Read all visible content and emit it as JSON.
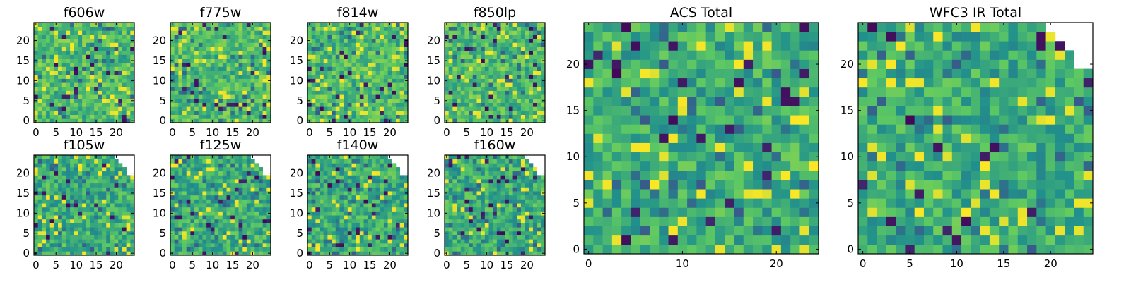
{
  "figure_title": "",
  "chart_data": [
    {
      "type": "heatmap",
      "title": "f606w",
      "grid_size": 25,
      "xlim": [
        0,
        24
      ],
      "ylim": [
        0,
        24
      ],
      "xticks": [
        0,
        5,
        10,
        15,
        20
      ],
      "yticks": [
        0,
        5,
        10,
        15,
        20
      ],
      "colormap": "viridis",
      "mask": "none"
    },
    {
      "type": "heatmap",
      "title": "f775w",
      "grid_size": 25,
      "xlim": [
        0,
        24
      ],
      "ylim": [
        0,
        24
      ],
      "xticks": [
        0,
        5,
        10,
        15,
        20
      ],
      "yticks": [
        0,
        5,
        10,
        15,
        20
      ],
      "colormap": "viridis",
      "mask": "none"
    },
    {
      "type": "heatmap",
      "title": "f814w",
      "grid_size": 25,
      "xlim": [
        0,
        24
      ],
      "ylim": [
        0,
        24
      ],
      "xticks": [
        0,
        5,
        10,
        15,
        20
      ],
      "yticks": [
        0,
        5,
        10,
        15,
        20
      ],
      "colormap": "viridis",
      "mask": "none"
    },
    {
      "type": "heatmap",
      "title": "f850lp",
      "grid_size": 25,
      "xlim": [
        0,
        24
      ],
      "ylim": [
        0,
        24
      ],
      "xticks": [
        0,
        5,
        10,
        15,
        20
      ],
      "yticks": [
        0,
        5,
        10,
        15,
        20
      ],
      "colormap": "viridis",
      "mask": "none"
    },
    {
      "type": "heatmap",
      "title": "f105w",
      "grid_size": 25,
      "xlim": [
        0,
        24
      ],
      "ylim": [
        0,
        24
      ],
      "xticks": [
        0,
        5,
        10,
        15,
        20
      ],
      "yticks": [
        0,
        5,
        10,
        15,
        20
      ],
      "colormap": "viridis",
      "mask": "top-right-corner"
    },
    {
      "type": "heatmap",
      "title": "f125w",
      "grid_size": 25,
      "xlim": [
        0,
        24
      ],
      "ylim": [
        0,
        24
      ],
      "xticks": [
        0,
        5,
        10,
        15,
        20
      ],
      "yticks": [
        0,
        5,
        10,
        15,
        20
      ],
      "colormap": "viridis",
      "mask": "top-right-corner"
    },
    {
      "type": "heatmap",
      "title": "f140w",
      "grid_size": 25,
      "xlim": [
        0,
        24
      ],
      "ylim": [
        0,
        24
      ],
      "xticks": [
        0,
        5,
        10,
        15,
        20
      ],
      "yticks": [
        0,
        5,
        10,
        15,
        20
      ],
      "colormap": "viridis",
      "mask": "top-right-corner"
    },
    {
      "type": "heatmap",
      "title": "f160w",
      "grid_size": 25,
      "xlim": [
        0,
        24
      ],
      "ylim": [
        0,
        24
      ],
      "xticks": [
        0,
        5,
        10,
        15,
        20
      ],
      "yticks": [
        0,
        5,
        10,
        15,
        20
      ],
      "colormap": "viridis",
      "mask": "top-right-corner"
    },
    {
      "type": "heatmap",
      "title": "ACS Total",
      "grid_size": 25,
      "xlim": [
        0,
        24
      ],
      "ylim": [
        0,
        24
      ],
      "xticks": [
        0,
        10,
        20
      ],
      "yticks": [
        0,
        5,
        10,
        15,
        20
      ],
      "colormap": "viridis",
      "mask": "none"
    },
    {
      "type": "heatmap",
      "title": "WFC3 IR Total",
      "grid_size": 25,
      "xlim": [
        0,
        24
      ],
      "ylim": [
        0,
        24
      ],
      "xticks": [
        0,
        5,
        10,
        15,
        20
      ],
      "yticks": [
        0,
        5,
        10,
        15,
        20
      ],
      "colormap": "viridis",
      "mask": "top-right-corner"
    }
  ]
}
